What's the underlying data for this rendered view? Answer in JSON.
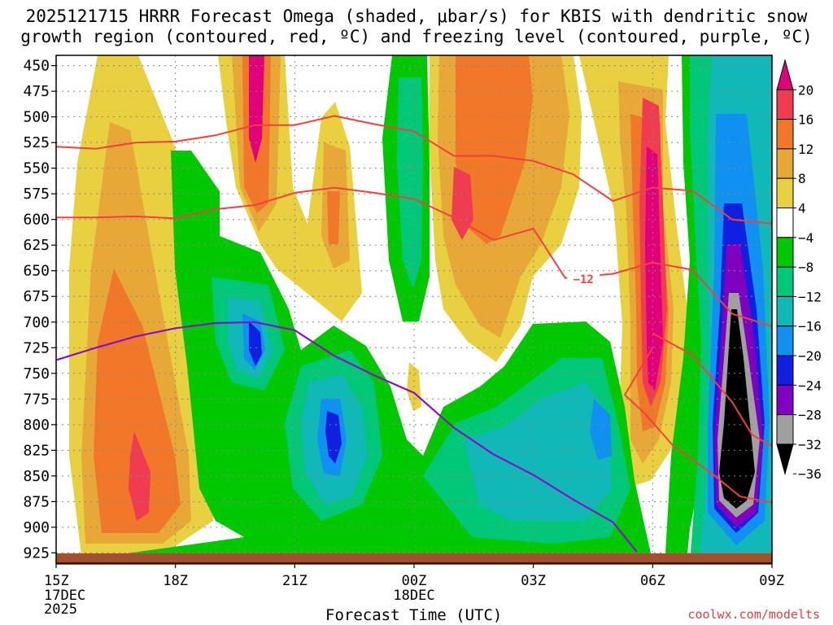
{
  "chart_data": {
    "type": "heatmap",
    "title_line1": "2025121715 HRRR Forecast Omega (shaded, μbar/s) for KBIS with dendritic snow",
    "title_line2": "growth region (contoured, red, ºC) and freezing level (contoured, purple, ºC)",
    "xlabel": "Forecast Time (UTC)",
    "credit": "coolwx.com/modelts",
    "y_ticks": [
      "450",
      "475",
      "500",
      "525",
      "550",
      "575",
      "600",
      "625",
      "650",
      "675",
      "700",
      "725",
      "750",
      "775",
      "800",
      "825",
      "850",
      "875",
      "900",
      "925"
    ],
    "y_range_mb": [
      440,
      935
    ],
    "x_range_hours": [
      15,
      33
    ],
    "x_ticks": [
      {
        "hour": 15,
        "label": "15Z",
        "sub": [
          "17DEC",
          "2025"
        ]
      },
      {
        "hour": 18,
        "label": "18Z",
        "sub": []
      },
      {
        "hour": 21,
        "label": "21Z",
        "sub": []
      },
      {
        "hour": 24,
        "label": "00Z",
        "sub": [
          "18DEC"
        ]
      },
      {
        "hour": 27,
        "label": "03Z",
        "sub": []
      },
      {
        "hour": 30,
        "label": "06Z",
        "sub": []
      },
      {
        "hour": 33,
        "label": "09Z",
        "sub": []
      }
    ],
    "colorbar": {
      "labels": [
        "20",
        "16",
        "12",
        "8",
        "4",
        "−4",
        "−8",
        "−12",
        "−16",
        "−20",
        "−24",
        "−28",
        "−32",
        "−36"
      ],
      "colors": [
        "#e0007a",
        "#f03c50",
        "#f07828",
        "#e8a838",
        "#e8d040",
        "#ffffff",
        "#00c800",
        "#00c878",
        "#10b8b8",
        "#1090f0",
        "#1020e0",
        "#8000c0",
        "#a0a0a0",
        "#000000"
      ]
    },
    "contour_label": "−12",
    "red_isotherms_mb": [
      [
        [
          15,
          529
        ],
        [
          16,
          531
        ],
        [
          17,
          525
        ],
        [
          18,
          524
        ],
        [
          19,
          518
        ],
        [
          20,
          508
        ],
        [
          21,
          508
        ],
        [
          22,
          499
        ],
        [
          23,
          507
        ],
        [
          24,
          514
        ],
        [
          25,
          538
        ],
        [
          26,
          538
        ],
        [
          27,
          543
        ],
        [
          28,
          556
        ],
        [
          29,
          582
        ],
        [
          30,
          569
        ],
        [
          31,
          572
        ],
        [
          32,
          600
        ],
        [
          33,
          604
        ]
      ],
      [
        [
          15,
          598
        ],
        [
          16,
          598
        ],
        [
          17,
          597
        ],
        [
          18,
          599
        ],
        [
          19,
          590
        ],
        [
          20,
          586
        ],
        [
          21,
          574
        ],
        [
          22,
          569
        ],
        [
          23,
          574
        ],
        [
          24,
          580
        ],
        [
          25,
          598
        ],
        [
          26,
          620
        ],
        [
          27,
          609
        ],
        [
          27.8,
          657
        ],
        [
          29,
          653
        ],
        [
          30,
          642
        ],
        [
          31,
          649
        ],
        [
          32,
          692
        ],
        [
          33,
          704
        ]
      ],
      [
        [
          30,
          725
        ],
        [
          29.3,
          771
        ],
        [
          29.8,
          789
        ],
        [
          30.5,
          820
        ],
        [
          31.5,
          848
        ],
        [
          32.2,
          870
        ],
        [
          33,
          876
        ]
      ],
      [
        [
          30,
          711
        ],
        [
          31,
          732
        ],
        [
          32,
          778
        ],
        [
          32.5,
          810
        ],
        [
          33,
          821
        ]
      ]
    ],
    "purple_isotherm_mb": [
      [
        15,
        737
      ],
      [
        16,
        725
      ],
      [
        17,
        714
      ],
      [
        18,
        706
      ],
      [
        19,
        701
      ],
      [
        20,
        700
      ],
      [
        21,
        708
      ],
      [
        22,
        733
      ],
      [
        23,
        752
      ],
      [
        24,
        769
      ],
      [
        25,
        803
      ],
      [
        26,
        829
      ],
      [
        27,
        849
      ],
      [
        28,
        873
      ],
      [
        29,
        895
      ],
      [
        29.6,
        924
      ]
    ]
  }
}
